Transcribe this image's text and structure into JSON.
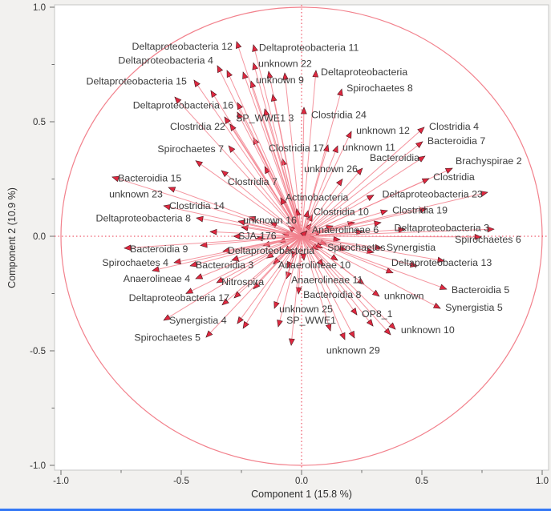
{
  "figure": {
    "background": "#f2f1ef",
    "plot_bg": "#ffffff",
    "frame_color": "#c6c6c6",
    "tick_color": "#6e6e6e",
    "tick_text": "#323232",
    "label_color": "#3c3c3c",
    "line_color": "#f2838e",
    "arrow_fill": "#e02840",
    "arrow_edge": "#47181d",
    "dash_color": "#ea3348",
    "circle_color": "#f2818c",
    "bottom_bar_color": "#3478f5"
  },
  "chart_data": {
    "type": "scatter",
    "subtype": "pca-loading-biplot",
    "title": "",
    "xlabel": "Component 1  (15.8 %)",
    "ylabel": "Component 2  (10.9 %)",
    "xlim": [
      -1,
      1
    ],
    "ylim": [
      -1,
      1
    ],
    "grid": false,
    "unit_circle": true,
    "x_ticks": [
      {
        "v": -1.0,
        "label": "-1.0"
      },
      {
        "v": -0.5,
        "label": "-0.5"
      },
      {
        "v": 0.0,
        "label": "0.0"
      },
      {
        "v": 0.5,
        "label": "0.5"
      },
      {
        "v": 1.0,
        "label": "1.0"
      }
    ],
    "y_ticks": [
      {
        "v": 1.0,
        "label": "1.0"
      },
      {
        "v": 0.5,
        "label": "0.5"
      },
      {
        "v": 0.0,
        "label": "0.0"
      },
      {
        "v": -0.5,
        "label": "-0.5"
      },
      {
        "v": -1.0,
        "label": "-1.0"
      }
    ],
    "minor_ticks": [
      -0.75,
      -0.25,
      0.25,
      0.75
    ],
    "loadings": [
      {
        "label": "Deltaproteobacteria 12",
        "x": -0.27,
        "y": 0.85,
        "lx": -0.287,
        "ly": 0.829,
        "anchor": "end"
      },
      {
        "label": "Deltaproteobacteria 11",
        "x": -0.2,
        "y": 0.836,
        "lx": -0.177,
        "ly": 0.825,
        "anchor": "start"
      },
      {
        "label": "Deltaproteobacteria 4",
        "x": -0.35,
        "y": 0.745,
        "lx": -0.367,
        "ly": 0.769,
        "anchor": "end"
      },
      {
        "label": "unknown 22",
        "x": -0.2,
        "y": 0.757,
        "lx": -0.18,
        "ly": 0.755,
        "anchor": "start"
      },
      {
        "label": "Deltaproteobacteria",
        "x": 0.06,
        "y": 0.724,
        "lx": 0.08,
        "ly": 0.717,
        "anchor": "start"
      },
      {
        "label": "unknown 9",
        "x": -0.21,
        "y": 0.678,
        "lx": -0.19,
        "ly": 0.682,
        "anchor": "start"
      },
      {
        "label": "Spirochaetes 8",
        "x": 0.167,
        "y": 0.643,
        "lx": 0.187,
        "ly": 0.647,
        "anchor": "start"
      },
      {
        "label": "Deltaproteobacteria 15",
        "x": -0.447,
        "y": 0.682,
        "lx": -0.477,
        "ly": 0.678,
        "anchor": "end"
      },
      {
        "label": "Deltaproteobacteria 16",
        "x": -0.267,
        "y": 0.584,
        "lx": -0.283,
        "ly": 0.573,
        "anchor": "end"
      },
      {
        "label": "SP_WWE1 3",
        "x": -0.153,
        "y": 0.556,
        "lx": -0.273,
        "ly": 0.517,
        "anchor": "start"
      },
      {
        "label": "Clostridia 24",
        "x": 0.01,
        "y": 0.563,
        "lx": 0.04,
        "ly": 0.531,
        "anchor": "start"
      },
      {
        "label": "Clostridia 22",
        "x": -0.297,
        "y": 0.49,
        "lx": -0.317,
        "ly": 0.479,
        "anchor": "end"
      },
      {
        "label": "unknown 12",
        "x": 0.207,
        "y": 0.458,
        "lx": 0.227,
        "ly": 0.462,
        "anchor": "start"
      },
      {
        "label": "Clostridia 4",
        "x": 0.51,
        "y": 0.476,
        "lx": 0.53,
        "ly": 0.479,
        "anchor": "start"
      },
      {
        "label": "Spirochaetes 7",
        "x": -0.303,
        "y": 0.395,
        "lx": -0.323,
        "ly": 0.381,
        "anchor": "end"
      },
      {
        "label": "Clostridia 17",
        "x": 0.11,
        "y": 0.399,
        "lx": 0.093,
        "ly": 0.385,
        "anchor": "end"
      },
      {
        "label": "unknown 11",
        "x": 0.15,
        "y": 0.395,
        "lx": 0.17,
        "ly": 0.388,
        "anchor": "start"
      },
      {
        "label": "Bacteroidia 7",
        "x": 0.503,
        "y": 0.413,
        "lx": 0.523,
        "ly": 0.416,
        "anchor": "start"
      },
      {
        "label": "Bacteroidia",
        "x": 0.513,
        "y": 0.35,
        "lx": 0.49,
        "ly": 0.343,
        "anchor": "end"
      },
      {
        "label": "Brachyspirae 2",
        "x": 0.627,
        "y": 0.297,
        "lx": 0.64,
        "ly": 0.329,
        "anchor": "start"
      },
      {
        "label": "unknown 26",
        "x": 0.253,
        "y": 0.297,
        "lx": 0.233,
        "ly": 0.294,
        "anchor": "end"
      },
      {
        "label": "Bacteroidia 15",
        "x": -0.787,
        "y": 0.259,
        "lx": -0.763,
        "ly": 0.255,
        "anchor": "start"
      },
      {
        "label": "Clostridia 7",
        "x": -0.333,
        "y": 0.287,
        "lx": -0.307,
        "ly": 0.238,
        "anchor": "start"
      },
      {
        "label": "unknown 23",
        "x": -0.553,
        "y": 0.213,
        "lx": -0.577,
        "ly": 0.185,
        "anchor": "end"
      },
      {
        "label": "Clostridia",
        "x": 0.53,
        "y": 0.252,
        "lx": 0.547,
        "ly": 0.259,
        "anchor": "start"
      },
      {
        "label": "Clostridia 14",
        "x": -0.573,
        "y": 0.133,
        "lx": -0.55,
        "ly": 0.133,
        "anchor": "start"
      },
      {
        "label": "Actinobacteria",
        "x": -0.087,
        "y": 0.168,
        "lx": -0.067,
        "ly": 0.171,
        "anchor": "start"
      },
      {
        "label": "Deltaproteobacteria 23",
        "x": 0.773,
        "y": 0.192,
        "lx": 0.753,
        "ly": 0.185,
        "anchor": "end"
      },
      {
        "label": "Clostridia 10",
        "x": 0.027,
        "y": 0.112,
        "lx": 0.05,
        "ly": 0.108,
        "anchor": "start"
      },
      {
        "label": "Clostridia 19",
        "x": 0.357,
        "y": 0.112,
        "lx": 0.377,
        "ly": 0.115,
        "anchor": "start"
      },
      {
        "label": "Deltaproteobacteria 8",
        "x": -0.437,
        "y": 0.08,
        "lx": -0.46,
        "ly": 0.08,
        "anchor": "end"
      },
      {
        "label": "unknown 16",
        "x": -0.263,
        "y": 0.066,
        "lx": -0.243,
        "ly": 0.07,
        "anchor": "start"
      },
      {
        "label": "Anaerolineae 6",
        "x": 0.023,
        "y": 0.024,
        "lx": 0.043,
        "ly": 0.028,
        "anchor": "start"
      },
      {
        "label": "SJA-176",
        "x": -0.283,
        "y": 0.0,
        "lx": -0.263,
        "ly": 0.003,
        "anchor": "start"
      },
      {
        "label": "Deltaproteobacteria 3",
        "x": 0.8,
        "y": 0.031,
        "lx": 0.78,
        "ly": 0.038,
        "anchor": "end"
      },
      {
        "label": "Spirochaetes 6",
        "x": 0.747,
        "y": -0.003,
        "lx": 0.637,
        "ly": -0.014,
        "anchor": "start"
      },
      {
        "label": "Spirochaetes",
        "x": 0.087,
        "y": -0.052,
        "lx": 0.107,
        "ly": -0.049,
        "anchor": "start"
      },
      {
        "label": "Synergistia",
        "x": 0.333,
        "y": -0.052,
        "lx": 0.353,
        "ly": -0.049,
        "anchor": "start"
      },
      {
        "label": "Deltaproteobacteria",
        "x": -0.327,
        "y": -0.066,
        "lx": -0.307,
        "ly": -0.063,
        "anchor": "start"
      },
      {
        "label": "Bacteroidia 9",
        "x": -0.737,
        "y": -0.052,
        "lx": -0.713,
        "ly": -0.056,
        "anchor": "start"
      },
      {
        "label": "Spirochaetes 4",
        "x": -0.53,
        "y": -0.115,
        "lx": -0.553,
        "ly": -0.115,
        "anchor": "end"
      },
      {
        "label": "Bacteroidia 3",
        "x": -0.463,
        "y": -0.129,
        "lx": -0.44,
        "ly": -0.126,
        "anchor": "start"
      },
      {
        "label": "Anaerolineae 10",
        "x": -0.117,
        "y": -0.122,
        "lx": -0.097,
        "ly": -0.126,
        "anchor": "start"
      },
      {
        "label": "Deltaproteobacteria 13",
        "x": 0.593,
        "y": -0.108,
        "lx": 0.373,
        "ly": -0.115,
        "anchor": "start"
      },
      {
        "label": "Anaerolineae 4",
        "x": -0.44,
        "y": -0.185,
        "lx": -0.463,
        "ly": -0.185,
        "anchor": "end"
      },
      {
        "label": "Nitrospira",
        "x": -0.353,
        "y": -0.203,
        "lx": -0.333,
        "ly": -0.199,
        "anchor": "start"
      },
      {
        "label": "Anaerolineae 11",
        "x": -0.063,
        "y": -0.185,
        "lx": -0.043,
        "ly": -0.189,
        "anchor": "start"
      },
      {
        "label": "Deltaproteobacteria 17",
        "x": -0.28,
        "y": -0.269,
        "lx": -0.3,
        "ly": -0.269,
        "anchor": "end"
      },
      {
        "label": "Bacteroidia 8",
        "x": -0.013,
        "y": -0.252,
        "lx": 0.007,
        "ly": -0.255,
        "anchor": "start"
      },
      {
        "label": "unknown",
        "x": 0.323,
        "y": -0.262,
        "lx": 0.343,
        "ly": -0.259,
        "anchor": "start"
      },
      {
        "label": "Bacteroidia 5",
        "x": 0.603,
        "y": -0.231,
        "lx": 0.623,
        "ly": -0.234,
        "anchor": "start"
      },
      {
        "label": "unknown 25",
        "x": -0.113,
        "y": -0.315,
        "lx": -0.093,
        "ly": -0.318,
        "anchor": "start"
      },
      {
        "label": "Synergistia 5",
        "x": 0.577,
        "y": -0.315,
        "lx": 0.597,
        "ly": -0.311,
        "anchor": "start"
      },
      {
        "label": "OP8_1",
        "x": 0.23,
        "y": -0.343,
        "lx": 0.25,
        "ly": -0.339,
        "anchor": "start"
      },
      {
        "label": "SP_WWE1",
        "x": -0.043,
        "y": -0.476,
        "lx": -0.063,
        "ly": -0.367,
        "anchor": "start"
      },
      {
        "label": "Synergistia 4",
        "x": -0.573,
        "y": -0.367,
        "lx": -0.55,
        "ly": -0.367,
        "anchor": "start"
      },
      {
        "label": "Spirochaetes 5",
        "x": -0.397,
        "y": -0.441,
        "lx": -0.42,
        "ly": -0.441,
        "anchor": "end"
      },
      {
        "label": "unknown 10",
        "x": 0.39,
        "y": -0.406,
        "lx": 0.413,
        "ly": -0.409,
        "anchor": "start"
      },
      {
        "label": "unknown 29",
        "x": 0.18,
        "y": -0.451,
        "lx": 0.103,
        "ly": -0.497,
        "anchor": "start"
      }
    ],
    "extra_arrows": [
      [
        -0.31,
        0.724
      ],
      [
        -0.243,
        0.717
      ],
      [
        -0.137,
        0.72
      ],
      [
        -0.07,
        0.713
      ],
      [
        -0.527,
        0.608
      ],
      [
        -0.377,
        0.636
      ],
      [
        -0.12,
        0.619
      ],
      [
        -0.267,
        0.542
      ],
      [
        -0.32,
        0.521
      ],
      [
        -0.153,
        0.304
      ],
      [
        -0.08,
        0.339
      ],
      [
        -0.243,
        -0.402
      ],
      [
        -0.097,
        -0.395
      ],
      [
        0.12,
        -0.413
      ],
      [
        0.297,
        -0.392
      ],
      [
        0.37,
        -0.43
      ],
      [
        0.22,
        -0.444
      ],
      [
        -0.267,
        -0.381
      ],
      [
        0.06,
        -0.01
      ],
      [
        0.085,
        0.02
      ],
      [
        0.105,
        -0.035
      ],
      [
        0.07,
        -0.06
      ],
      [
        0.04,
        0.055
      ],
      [
        -0.055,
        0.045
      ],
      [
        -0.08,
        0.012
      ],
      [
        -0.095,
        -0.025
      ],
      [
        -0.07,
        -0.07
      ],
      [
        -0.04,
        -0.095
      ],
      [
        0.01,
        -0.105
      ],
      [
        0.13,
        0.045
      ],
      [
        0.16,
        -0.015
      ],
      [
        0.185,
        -0.06
      ],
      [
        -0.13,
        0.06
      ],
      [
        -0.16,
        -0.04
      ],
      [
        -0.19,
        -0.01
      ],
      [
        -0.145,
        -0.095
      ],
      [
        0.045,
        0.095
      ],
      [
        -0.02,
        0.12
      ],
      [
        0.22,
        0.06
      ],
      [
        0.255,
        0.02
      ],
      [
        -0.22,
        0.085
      ],
      [
        -0.25,
        0.04
      ],
      [
        0.09,
        -0.13
      ],
      [
        -0.06,
        -0.14
      ],
      [
        0.15,
        -0.105
      ],
      [
        0.3,
        -0.07
      ],
      [
        -0.29,
        -0.105
      ],
      [
        0.33,
        0.06
      ],
      [
        0.43,
        0.03
      ],
      [
        -0.38,
        0.02
      ],
      [
        -0.42,
        -0.04
      ],
      [
        0.38,
        -0.16
      ],
      [
        0.26,
        -0.21
      ],
      [
        -0.2,
        -0.23
      ],
      [
        -0.33,
        -0.3
      ],
      [
        -0.48,
        -0.25
      ],
      [
        -0.62,
        -0.15
      ],
      [
        0.48,
        -0.13
      ],
      [
        0.52,
        0.12
      ],
      [
        0.3,
        0.18
      ],
      [
        0.17,
        0.25
      ],
      [
        -0.44,
        0.33
      ],
      [
        -0.2,
        0.43
      ]
    ]
  }
}
